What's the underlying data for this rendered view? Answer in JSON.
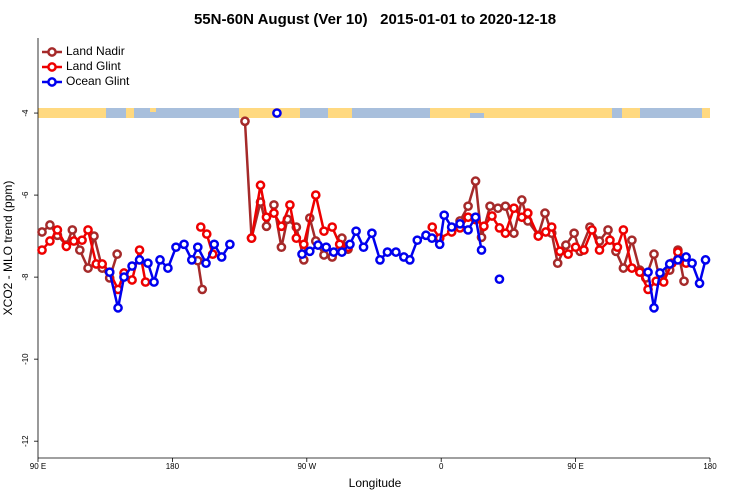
{
  "chart_data": {
    "type": "line",
    "title": "55N-60N August (Ver 10)   2015-01-01 to 2020-12-18",
    "x_label": "Longitude",
    "y_label": "XCO2 - MLO trend (ppm)",
    "xlim": [
      90,
      540
    ],
    "xticks": [
      {
        "value": 90,
        "label": "90 E"
      },
      {
        "value": 180,
        "label": "180"
      },
      {
        "value": 270,
        "label": "90 W"
      },
      {
        "value": 360,
        "label": "0"
      },
      {
        "value": 450,
        "label": "90 E"
      },
      {
        "value": 540,
        "label": "180"
      }
    ],
    "ylim": [
      -12.41,
      -2.17
    ],
    "yticks": [
      -4,
      -6,
      -8,
      -10,
      -12
    ],
    "legend": "upper left",
    "series": [
      {
        "name": "Land Nadir",
        "color": "#a52a2a",
        "x": [
          92.7,
          98,
          103,
          109,
          113,
          118,
          123.5,
          127.5,
          133,
          138,
          143,
          170,
          197,
          200,
          215,
          228.6,
          233,
          239,
          243,
          248,
          253,
          257,
          263,
          268,
          272,
          276,
          281.5,
          287,
          293.5,
          297.6,
          335,
          372.6,
          378,
          383,
          387,
          392.7,
          398,
          403,
          408.7,
          414,
          418,
          425,
          429.5,
          434,
          438,
          443.5,
          449,
          453,
          459.6,
          466,
          471.7,
          477,
          482,
          487.7,
          493,
          497,
          502.5,
          506.5,
          513,
          518.5,
          522.6
        ],
        "values": [
          -6.9,
          -6.73,
          -6.98,
          -7.22,
          -6.85,
          -7.34,
          -7.78,
          -7.0,
          -7.78,
          -8.02,
          -7.44,
          null,
          -7.6,
          -8.3,
          null,
          -4.2,
          -7.05,
          -6.17,
          -6.76,
          -6.24,
          -7.27,
          -6.59,
          -6.78,
          -7.58,
          -6.56,
          -7.12,
          -7.46,
          -7.51,
          -7.05,
          -7.32,
          null,
          -6.63,
          -6.27,
          -5.66,
          -7.03,
          -6.27,
          -6.32,
          -6.27,
          -6.93,
          -6.12,
          -6.63,
          -6.98,
          -6.44,
          -6.93,
          -7.66,
          -7.22,
          -6.93,
          -7.37,
          -6.78,
          -7.12,
          -6.85,
          -7.37,
          -7.78,
          -7.1,
          -7.83,
          -8.02,
          -7.44,
          -8.07,
          -7.83,
          -7.34,
          -8.1
        ]
      },
      {
        "name": "Land Glint",
        "color": "#ee0000",
        "x": [
          92.7,
          98,
          103,
          109,
          114,
          119.5,
          123.5,
          129,
          133,
          138,
          143.6,
          147.6,
          153,
          158,
          162,
          180,
          199,
          203,
          207,
          220,
          233,
          239,
          243,
          248,
          253,
          258.7,
          263,
          268,
          276,
          281.5,
          287,
          292,
          297.6,
          325,
          354,
          359,
          367,
          372.6,
          378,
          383,
          388.6,
          394,
          399,
          403,
          408.7,
          414,
          418,
          425,
          430,
          434,
          439.5,
          445,
          450,
          455.6,
          461,
          466,
          473,
          478,
          482,
          487.7,
          493,
          498.5,
          504,
          509,
          514.5,
          518.5,
          524
        ],
        "values": [
          -7.34,
          -7.12,
          -6.85,
          -7.25,
          -7.12,
          -7.1,
          -6.85,
          -7.68,
          -7.68,
          -7.88,
          -8.3,
          -7.9,
          -8.07,
          -7.34,
          -8.12,
          null,
          -6.78,
          -6.95,
          -7.44,
          null,
          -7.05,
          -5.76,
          -6.54,
          -6.44,
          -6.76,
          -6.24,
          -7.05,
          -7.2,
          -6.0,
          -6.88,
          -6.78,
          -7.2,
          -7.27,
          null,
          -6.78,
          -7.05,
          -6.9,
          -6.8,
          -6.54,
          -6.6,
          -6.76,
          -6.51,
          -6.8,
          -6.93,
          -6.32,
          -6.54,
          -6.44,
          -7.0,
          -6.9,
          -6.78,
          -7.37,
          -7.44,
          -7.27,
          -7.34,
          -6.85,
          -7.34,
          -7.1,
          -7.27,
          -6.85,
          -7.78,
          -7.88,
          -8.3,
          -8.1,
          -8.12,
          -7.66,
          -7.39,
          -7.66
        ]
      },
      {
        "name": "Ocean Glint",
        "color": "#0000ee",
        "x": [
          138,
          143.6,
          147.6,
          153,
          158,
          163.6,
          167.7,
          171.7,
          177,
          182.4,
          187.8,
          193,
          197,
          202.5,
          208,
          213,
          218.5,
          235,
          250,
          258,
          266.8,
          272,
          277.5,
          283,
          288,
          293.5,
          298.9,
          303,
          308,
          313.6,
          319,
          324,
          329.7,
          335,
          339,
          344,
          349.8,
          353.8,
          359,
          362,
          367,
          372.6,
          378,
          383,
          387,
          393,
          399,
          450,
          498.5,
          502.5,
          506.5,
          513,
          518.5,
          524,
          528,
          533,
          537
        ],
        "values": [
          -7.88,
          -8.75,
          -8.0,
          -7.73,
          -7.58,
          -7.66,
          -8.12,
          -7.58,
          -7.78,
          -7.27,
          -7.2,
          -7.58,
          -7.27,
          -7.66,
          -7.2,
          -7.51,
          -7.2,
          null,
          -4.0,
          null,
          -7.44,
          -7.37,
          -7.22,
          -7.27,
          -7.39,
          -7.39,
          -7.2,
          -6.88,
          -7.27,
          -6.93,
          -7.58,
          -7.39,
          -7.39,
          -7.51,
          -7.58,
          -7.1,
          -6.98,
          -7.05,
          -7.2,
          -6.49,
          -6.78,
          -6.7,
          -6.85,
          -6.54,
          -7.34,
          null,
          -8.05,
          null,
          -7.88,
          -8.75,
          -7.9,
          -7.68,
          -7.58,
          -7.51,
          -7.66,
          -8.15,
          -7.58
        ]
      }
    ]
  }
}
